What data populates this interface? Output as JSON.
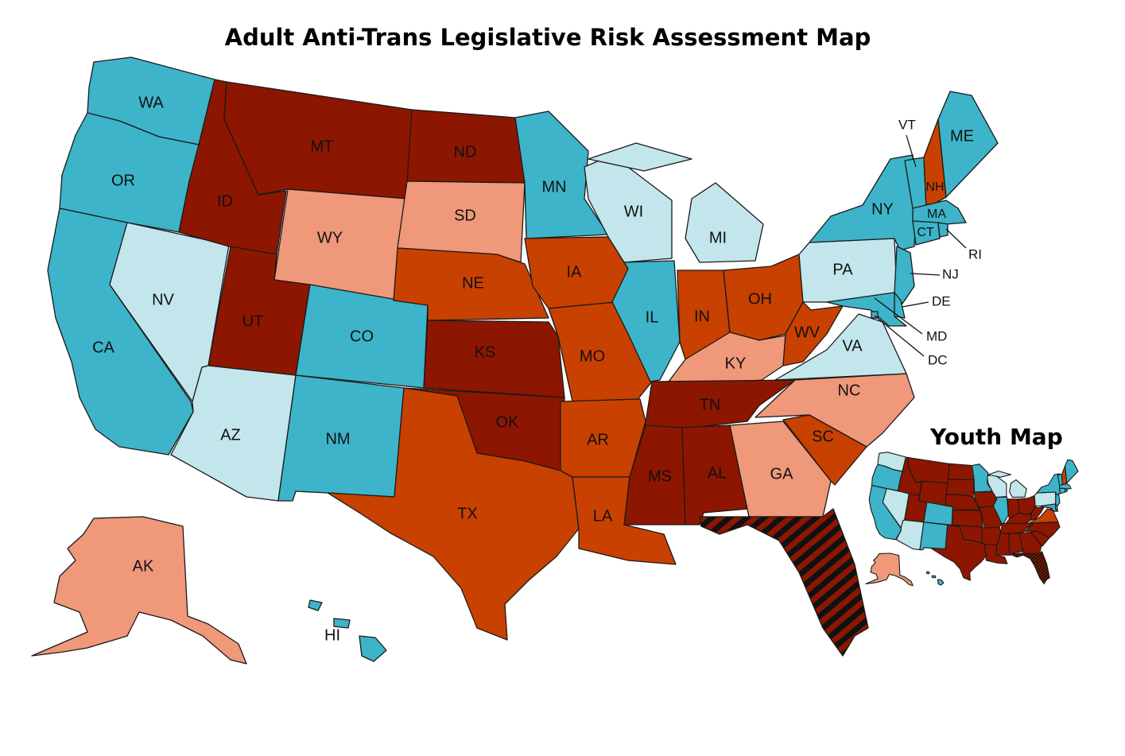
{
  "title": "Adult Anti-Trans Legislative Risk Assessment Map",
  "inset_title": "Youth Map",
  "colors": {
    "lowest": "#3db4c9",
    "low": "#c2e6ec",
    "moderate": "#ef987a",
    "high": "#c94100",
    "highest": "#8d1600",
    "worst_hatch_dark": "#111111",
    "worst_hatch_red": "#8d1600"
  },
  "states": [
    {
      "abbr": "WA",
      "adult": "lowest",
      "youth": "low"
    },
    {
      "abbr": "OR",
      "adult": "lowest",
      "youth": "lowest"
    },
    {
      "abbr": "CA",
      "adult": "lowest",
      "youth": "lowest"
    },
    {
      "abbr": "NV",
      "adult": "low",
      "youth": "low"
    },
    {
      "abbr": "ID",
      "adult": "highest",
      "youth": "highest"
    },
    {
      "abbr": "MT",
      "adult": "highest",
      "youth": "highest"
    },
    {
      "abbr": "WY",
      "adult": "moderate",
      "youth": "highest"
    },
    {
      "abbr": "UT",
      "adult": "highest",
      "youth": "highest"
    },
    {
      "abbr": "AZ",
      "adult": "low",
      "youth": "low"
    },
    {
      "abbr": "CO",
      "adult": "lowest",
      "youth": "lowest"
    },
    {
      "abbr": "NM",
      "adult": "lowest",
      "youth": "lowest"
    },
    {
      "abbr": "ND",
      "adult": "highest",
      "youth": "highest"
    },
    {
      "abbr": "SD",
      "adult": "moderate",
      "youth": "highest"
    },
    {
      "abbr": "NE",
      "adult": "high",
      "youth": "highest"
    },
    {
      "abbr": "KS",
      "adult": "highest",
      "youth": "highest"
    },
    {
      "abbr": "OK",
      "adult": "highest",
      "youth": "highest"
    },
    {
      "abbr": "TX",
      "adult": "high",
      "youth": "highest"
    },
    {
      "abbr": "MN",
      "adult": "lowest",
      "youth": "lowest"
    },
    {
      "abbr": "IA",
      "adult": "high",
      "youth": "highest"
    },
    {
      "abbr": "MO",
      "adult": "high",
      "youth": "highest"
    },
    {
      "abbr": "AR",
      "adult": "high",
      "youth": "highest"
    },
    {
      "abbr": "LA",
      "adult": "high",
      "youth": "highest"
    },
    {
      "abbr": "WI",
      "adult": "low",
      "youth": "low"
    },
    {
      "abbr": "IL",
      "adult": "lowest",
      "youth": "lowest"
    },
    {
      "abbr": "MI",
      "adult": "low",
      "youth": "low"
    },
    {
      "abbr": "IN",
      "adult": "high",
      "youth": "highest"
    },
    {
      "abbr": "OH",
      "adult": "high",
      "youth": "highest"
    },
    {
      "abbr": "KY",
      "adult": "moderate",
      "youth": "highest"
    },
    {
      "abbr": "TN",
      "adult": "highest",
      "youth": "highest"
    },
    {
      "abbr": "MS",
      "adult": "highest",
      "youth": "highest"
    },
    {
      "abbr": "AL",
      "adult": "highest",
      "youth": "highest"
    },
    {
      "abbr": "GA",
      "adult": "moderate",
      "youth": "highest"
    },
    {
      "abbr": "FL",
      "adult": "worst",
      "youth": "worst"
    },
    {
      "abbr": "SC",
      "adult": "high",
      "youth": "highest"
    },
    {
      "abbr": "NC",
      "adult": "moderate",
      "youth": "highest"
    },
    {
      "abbr": "VA",
      "adult": "low",
      "youth": "high"
    },
    {
      "abbr": "WV",
      "adult": "high",
      "youth": "highest"
    },
    {
      "abbr": "PA",
      "adult": "low",
      "youth": "low"
    },
    {
      "abbr": "NY",
      "adult": "lowest",
      "youth": "lowest"
    },
    {
      "abbr": "VT",
      "adult": "lowest",
      "youth": "lowest"
    },
    {
      "abbr": "NH",
      "adult": "high",
      "youth": "high"
    },
    {
      "abbr": "ME",
      "adult": "lowest",
      "youth": "lowest"
    },
    {
      "abbr": "MA",
      "adult": "lowest",
      "youth": "lowest"
    },
    {
      "abbr": "CT",
      "adult": "lowest",
      "youth": "lowest"
    },
    {
      "abbr": "RI",
      "adult": "lowest",
      "youth": "lowest"
    },
    {
      "abbr": "NJ",
      "adult": "lowest",
      "youth": "lowest"
    },
    {
      "abbr": "DE",
      "adult": "lowest",
      "youth": "lowest"
    },
    {
      "abbr": "MD",
      "adult": "lowest",
      "youth": "lowest"
    },
    {
      "abbr": "DC",
      "adult": "lowest",
      "youth": "lowest"
    },
    {
      "abbr": "AK",
      "adult": "moderate",
      "youth": "moderate"
    },
    {
      "abbr": "HI",
      "adult": "lowest",
      "youth": "lowest"
    }
  ]
}
